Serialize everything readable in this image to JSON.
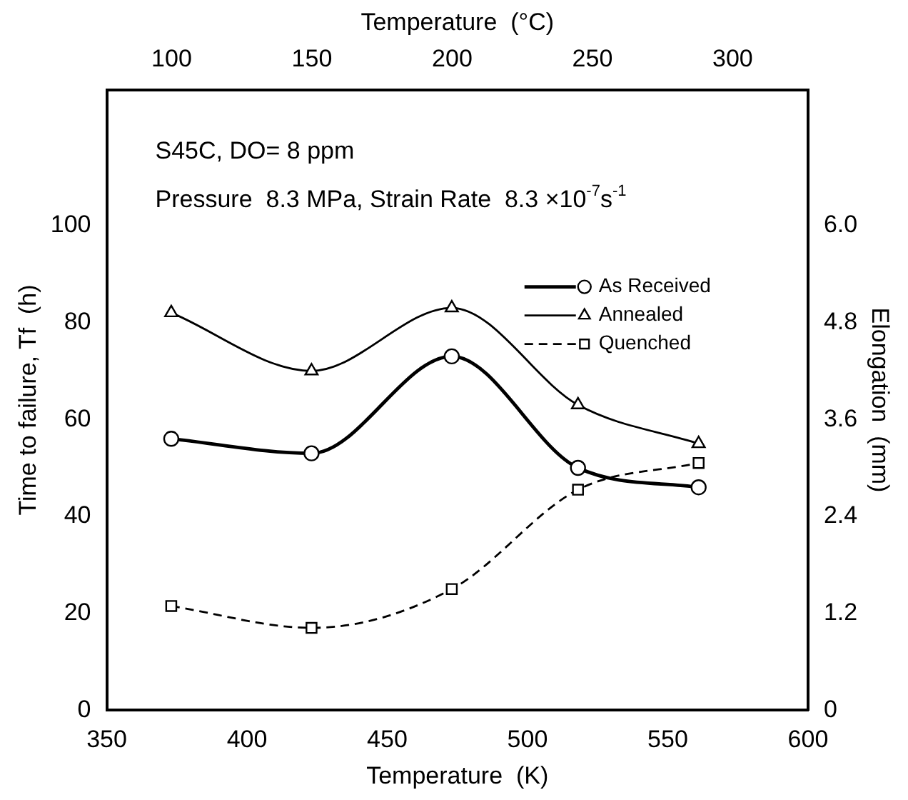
{
  "chart_data": {
    "type": "line",
    "xlabel": "Temperature  (K)",
    "x2label": "Temperature  (°C)",
    "ylabel": "Time to failure, Tf  (h)",
    "y2label": "Elongation  (mm)",
    "x": [
      373,
      423,
      473,
      518,
      561
    ],
    "series": [
      {
        "name": "As Received",
        "color": "#000000",
        "values": [
          56,
          53,
          73,
          50,
          46
        ],
        "marker": "circle",
        "line_style": "solid"
      },
      {
        "name": "Annealed",
        "color": "#000000",
        "values": [
          82,
          70,
          83,
          63,
          55
        ],
        "marker": "triangle",
        "line_style": "solid"
      },
      {
        "name": "Quenched",
        "color": "#000000",
        "values": [
          21.5,
          17,
          25,
          45.5,
          51
        ],
        "marker": "square",
        "line_style": "dashed"
      }
    ],
    "xlim": [
      350,
      600
    ],
    "xticks": [
      350,
      400,
      450,
      500,
      550,
      600
    ],
    "x2lim": [
      76.85,
      326.85
    ],
    "x2ticks": [
      100,
      150,
      200,
      250,
      300
    ],
    "ylim": [
      0,
      128
    ],
    "yticks": [
      0,
      20,
      40,
      60,
      80,
      100
    ],
    "y2lim": [
      0,
      7.68
    ],
    "y2ticks": [
      0,
      {
        "value": 1.2,
        "label": "1.2"
      },
      {
        "value": 2.4,
        "label": "2.4"
      },
      {
        "value": 3.6,
        "label": "3.6"
      },
      {
        "value": 4.8,
        "label": "4.8"
      },
      {
        "value": 6,
        "label": "6.0"
      }
    ],
    "annotations": [
      "S45C, DO= 8 ppm",
      "Pressure  8.3 MPa, Strain Rate  8.3 ×10$^{-7}$s$^{-1}$"
    ],
    "legend": "top right",
    "grid": false
  }
}
